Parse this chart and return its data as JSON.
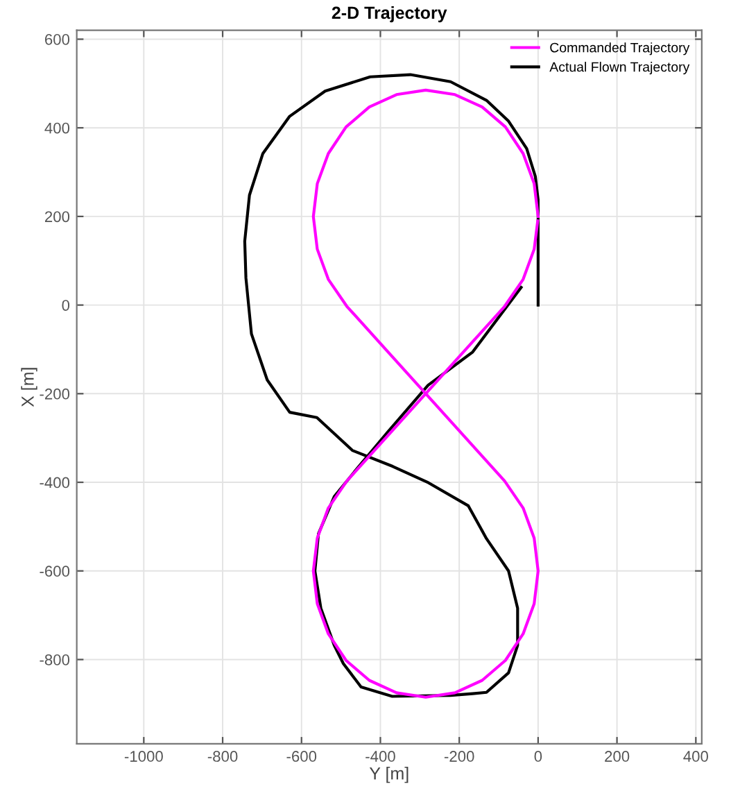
{
  "chart_data": {
    "type": "line",
    "title": "2-D Trajectory",
    "xlabel": "Y [m]",
    "ylabel": "X [m]",
    "xlim": [
      -1170,
      415
    ],
    "ylim": [
      -990,
      620
    ],
    "xticks": [
      -1000,
      -800,
      -600,
      -400,
      -200,
      0,
      200,
      400
    ],
    "yticks": [
      -800,
      -600,
      -400,
      -200,
      0,
      200,
      400,
      600
    ],
    "grid": true,
    "legend": "top right",
    "line_style": "solid",
    "marker": "none",
    "series": [
      {
        "name": "Commanded Trajectory",
        "color": "#ff00ff",
        "x": [
          0,
          -10,
          -38,
          -83,
          -142,
          -211,
          -285,
          -359,
          -428,
          -487,
          -532,
          -560,
          -570,
          -560,
          -532,
          -485,
          -85,
          -38,
          -10,
          0,
          -10,
          -38,
          -83,
          -142,
          -211,
          -285,
          -359,
          -428,
          -487,
          -532,
          -560,
          -570,
          -560,
          -532,
          -485,
          -85,
          -38,
          -10,
          -1
        ],
        "values": [
          200,
          274,
          342,
          402,
          447,
          475,
          485,
          475,
          447,
          402,
          342,
          274,
          200,
          126,
          58,
          -3,
          -397,
          -458,
          -526,
          -600,
          -674,
          -742,
          -802,
          -847,
          -875,
          -885,
          -875,
          -847,
          -802,
          -742,
          -674,
          -600,
          -526,
          -458,
          -397,
          -3,
          58,
          126,
          190
        ]
      },
      {
        "name": "Actual Flown Trajectory",
        "color": "#000000",
        "x": [
          0,
          0,
          -7,
          -29,
          -75,
          -131,
          -222,
          -324,
          -426,
          -540,
          -630,
          -698,
          -732,
          -744,
          -741,
          -727,
          -687,
          -630,
          -561,
          -471,
          -369,
          -278,
          -177,
          -131,
          -75,
          -52,
          -52,
          -75,
          -131,
          -166,
          -222,
          -370,
          -449,
          -494,
          -517,
          -551,
          -566,
          -557,
          -517,
          -460,
          -381,
          -279,
          -166,
          -43
        ],
        "values": [
          0,
          238,
          290,
          353,
          415,
          462,
          504,
          520,
          515,
          483,
          426,
          342,
          248,
          144,
          61,
          -65,
          -169,
          -242,
          -254,
          -328,
          -364,
          -401,
          -453,
          -527,
          -600,
          -684,
          -768,
          -830,
          -874,
          -877,
          -881,
          -883,
          -862,
          -809,
          -768,
          -684,
          -600,
          -516,
          -432,
          -370,
          -286,
          -181,
          -106,
          40
        ]
      }
    ]
  }
}
